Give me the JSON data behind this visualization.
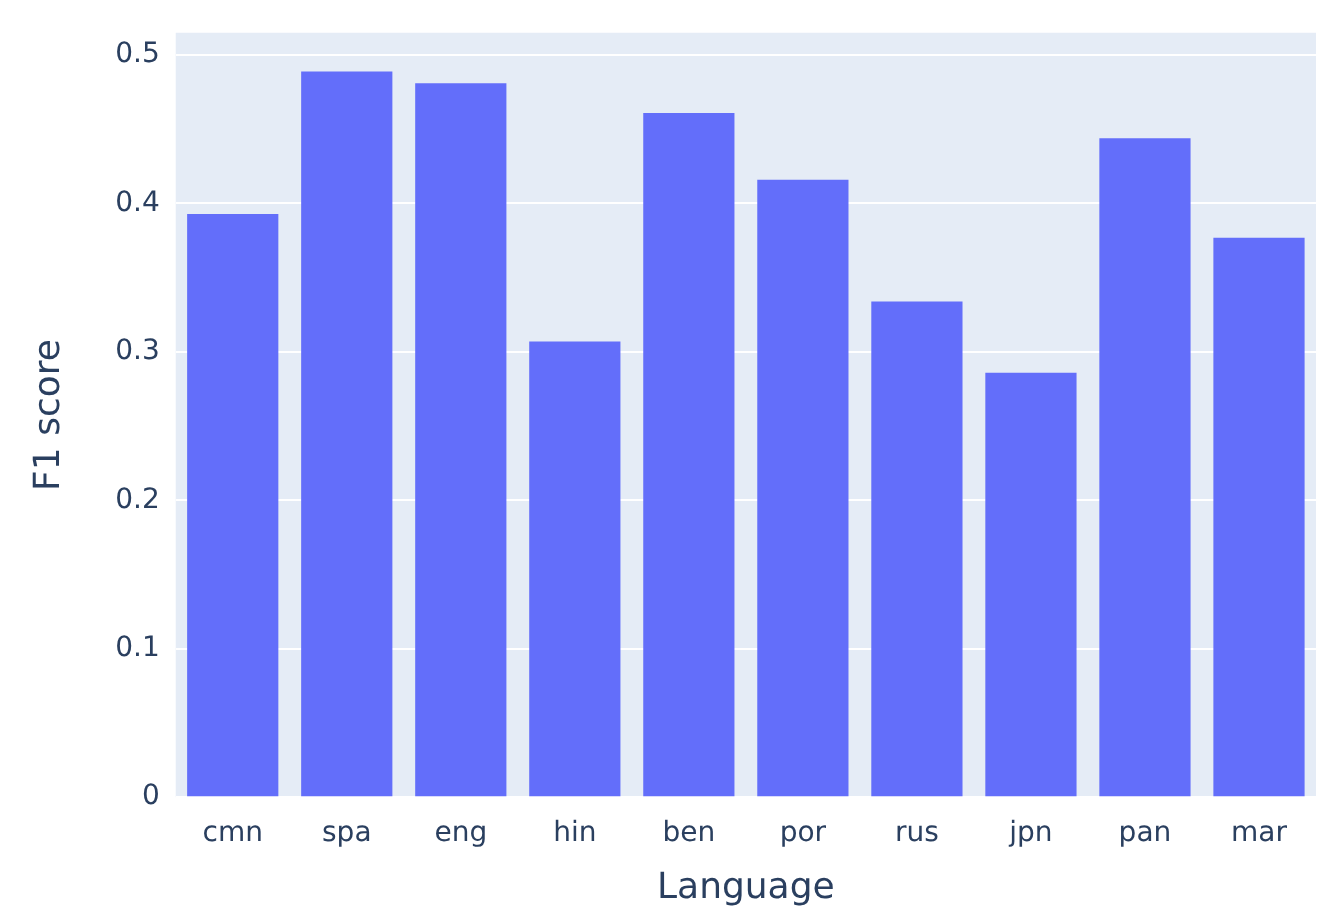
{
  "chart_data": {
    "type": "bar",
    "xlabel": "Language",
    "ylabel": "F1 score",
    "categories": [
      "cmn",
      "spa",
      "eng",
      "hin",
      "ben",
      "por",
      "rus",
      "jpn",
      "pan",
      "mar"
    ],
    "values": [
      0.393,
      0.489,
      0.481,
      0.307,
      0.461,
      0.416,
      0.334,
      0.286,
      0.444,
      0.377
    ],
    "color": "#636efa",
    "ylim": [
      0,
      0.515
    ],
    "yticks": [
      0,
      0.1,
      0.2,
      0.3,
      0.4,
      0.5
    ],
    "grid": "y",
    "legend": false
  }
}
